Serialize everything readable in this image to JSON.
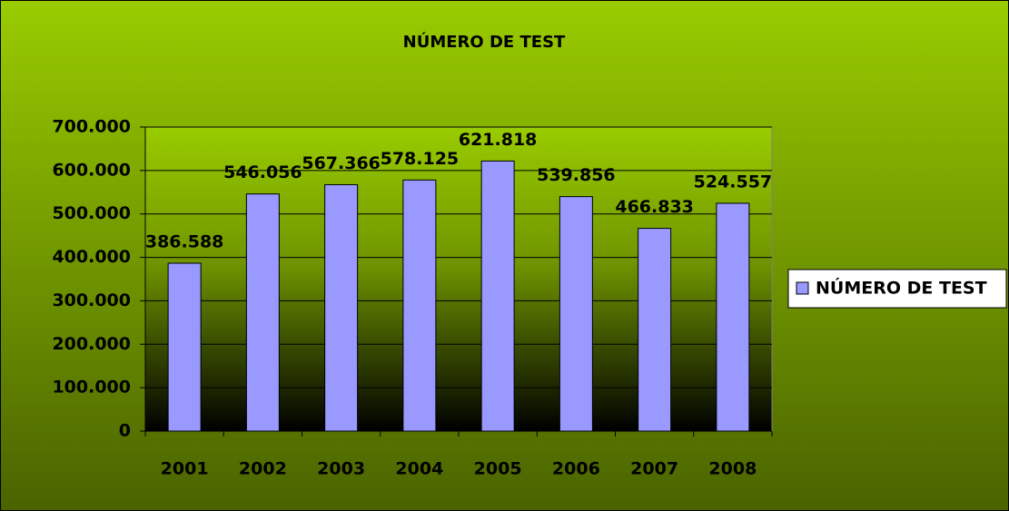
{
  "chart_data": {
    "type": "bar",
    "title": "NÚMERO DE TEST",
    "categories": [
      "2001",
      "2002",
      "2003",
      "2004",
      "2005",
      "2006",
      "2007",
      "2008"
    ],
    "series": [
      {
        "name": "NÚMERO DE TEST",
        "color": "#9999ff",
        "values": [
          386588,
          546056,
          567366,
          578125,
          621818,
          539856,
          466833,
          524557
        ],
        "value_labels": [
          "386.588",
          "546.056",
          "567.366",
          "578.125",
          "621.818",
          "539.856",
          "466.833",
          "524.557"
        ]
      }
    ],
    "ylim": [
      0,
      700000
    ],
    "yticks": [
      0,
      {
        "value": 100000,
        "label": "100.000"
      },
      {
        "value": 200000,
        "label": "200.000"
      },
      {
        "value": 300000,
        "label": "300.000"
      },
      {
        "value": 400000,
        "label": "400.000"
      },
      {
        "value": 500000,
        "label": "500.000"
      },
      {
        "value": 600000,
        "label": "600.000"
      },
      {
        "value": 700000,
        "label": "700.000"
      }
    ],
    "grid": true,
    "legend": "right"
  }
}
